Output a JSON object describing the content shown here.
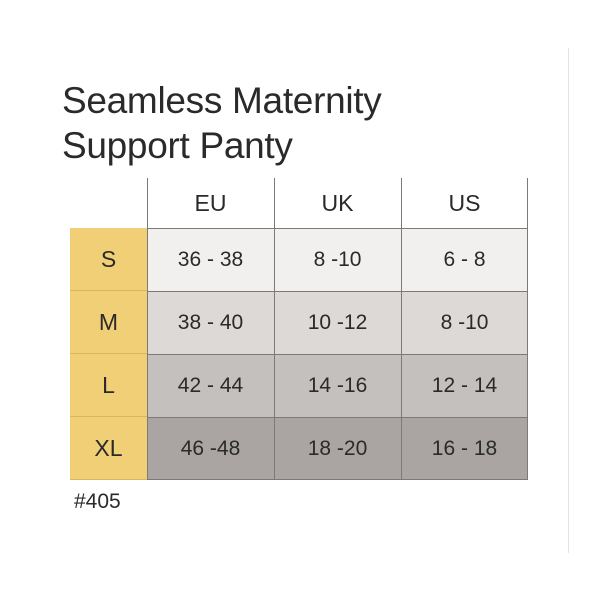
{
  "title": {
    "line1": "Seamless Maternity",
    "line2": "Support Panty"
  },
  "size_chart": {
    "columns": [
      "EU",
      "UK",
      "US"
    ],
    "rows": [
      {
        "size": "S",
        "values": [
          "36 - 38",
          "8 -10",
          "6 - 8"
        ]
      },
      {
        "size": "M",
        "values": [
          "38 - 40",
          "10 -12",
          "8 -10"
        ]
      },
      {
        "size": "L",
        "values": [
          "42 - 44",
          "14 -16",
          "12 - 14"
        ]
      },
      {
        "size": "XL",
        "values": [
          "46 -48",
          "18 -20",
          "16 - 18"
        ]
      }
    ]
  },
  "style_code": "#405",
  "colors": {
    "size_column": "#f0cf77",
    "row_s": "#f2f0ef",
    "row_m": "#dcd9d7",
    "row_l": "#c4c0bd",
    "row_xl": "#aaa5a2"
  }
}
